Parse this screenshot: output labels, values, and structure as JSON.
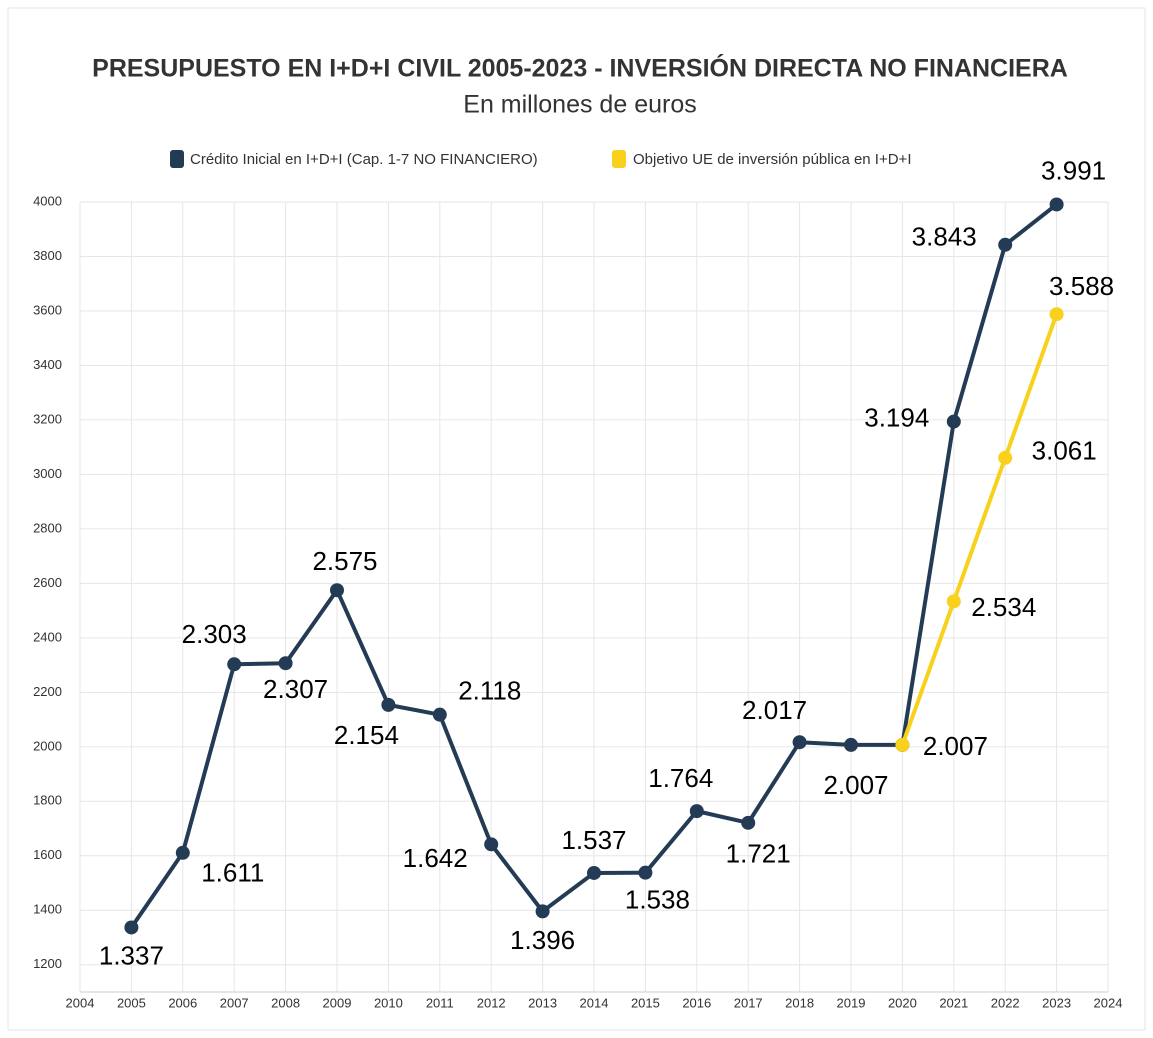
{
  "chart_data": {
    "type": "line",
    "title": "PRESUPUESTO EN I+D+I CIVIL 2005-2023 - INVERSIÓN DIRECTA NO FINANCIERA",
    "subtitle": "En millones de euros",
    "legend": "top",
    "grid": true,
    "xlim": [
      2004,
      2024
    ],
    "xticks": [
      2004,
      2005,
      2006,
      2007,
      2008,
      2009,
      2010,
      2011,
      2012,
      2013,
      2014,
      2015,
      2016,
      2017,
      2018,
      2019,
      2020,
      2021,
      2022,
      2023,
      2024
    ],
    "ylim": [
      1100,
      4000
    ],
    "yticks": [
      1200,
      1400,
      1600,
      1800,
      2000,
      2200,
      2400,
      2600,
      2800,
      3000,
      3200,
      3400,
      3600,
      3800,
      4000
    ],
    "series": [
      {
        "name": "Crédito Inicial en I+D+I (Cap. 1-7 NO FINANCIERO)",
        "color": "#243b55",
        "x": [
          2005,
          2006,
          2007,
          2008,
          2009,
          2010,
          2011,
          2012,
          2013,
          2014,
          2015,
          2016,
          2017,
          2018,
          2019,
          2020,
          2021,
          2022,
          2023
        ],
        "values": [
          1337,
          1611,
          2303,
          2307,
          2575,
          2154,
          2118,
          1642,
          1396,
          1537,
          1538,
          1764,
          1721,
          2017,
          2007,
          2007,
          3194,
          3843,
          3991
        ],
        "value_labels": [
          "1.337",
          "1.611",
          "2.303",
          "2.307",
          "2.575",
          "2.154",
          "2.118",
          "1.642",
          "1.396",
          "1.537",
          "1.538",
          "1.764",
          "1.721",
          "2.017",
          "2.007",
          null,
          "3.194",
          "3.843",
          "3.991"
        ]
      },
      {
        "name": "Objetivo UE de inversión pública en I+D+I",
        "color": "#f9d01c",
        "x": [
          2020,
          2021,
          2022,
          2023
        ],
        "values": [
          2007,
          2534,
          3061,
          3588
        ],
        "value_labels": [
          "2.007",
          "2.534",
          "3.061",
          "3.588"
        ]
      }
    ]
  }
}
